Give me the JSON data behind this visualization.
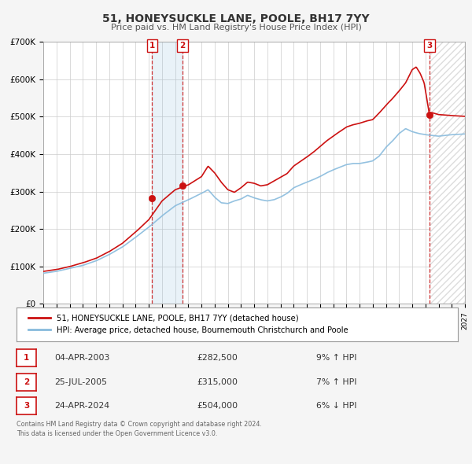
{
  "title": "51, HONEYSUCKLE LANE, POOLE, BH17 7YY",
  "subtitle": "Price paid vs. HM Land Registry's House Price Index (HPI)",
  "bg_color": "#f5f5f5",
  "plot_bg_color": "#ffffff",
  "grid_color": "#cccccc",
  "hpi_color": "#88bbdd",
  "price_color": "#cc1111",
  "legend_line1": "51, HONEYSUCKLE LANE, POOLE, BH17 7YY (detached house)",
  "legend_line2": "HPI: Average price, detached house, Bournemouth Christchurch and Poole",
  "sales": [
    {
      "label": "1",
      "year": 2003.25,
      "price": 282500
    },
    {
      "label": "2",
      "year": 2005.56,
      "price": 315000
    },
    {
      "label": "3",
      "year": 2024.31,
      "price": 504000
    }
  ],
  "table_rows": [
    {
      "num": "1",
      "date": "04-APR-2003",
      "price": "£282,500",
      "pct": "9% ↑ HPI"
    },
    {
      "num": "2",
      "date": "25-JUL-2005",
      "price": "£315,000",
      "pct": "7% ↑ HPI"
    },
    {
      "num": "3",
      "date": "24-APR-2024",
      "price": "£504,000",
      "pct": "6% ↓ HPI"
    }
  ],
  "footer1": "Contains HM Land Registry data © Crown copyright and database right 2024.",
  "footer2": "This data is licensed under the Open Government Licence v3.0.",
  "ylim": [
    0,
    700000
  ],
  "yticks": [
    0,
    100000,
    200000,
    300000,
    400000,
    500000,
    600000,
    700000
  ],
  "ytick_labels": [
    "£0",
    "£100K",
    "£200K",
    "£300K",
    "£400K",
    "£500K",
    "£600K",
    "£700K"
  ],
  "year_start": 1995,
  "year_end": 2027
}
